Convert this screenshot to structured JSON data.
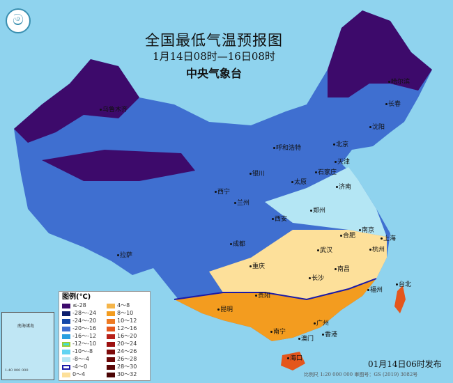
{
  "title": "全国最低气温预报图",
  "period": "1月14日08时—16日08时",
  "issuer": "中央气象台",
  "logo_icon": "cma-logo-icon",
  "legend": {
    "title": "图例(℃)",
    "items": [
      {
        "label": "≤-28",
        "color": "#3d0a6b"
      },
      {
        "label": "4～8",
        "color": "#f5b54a"
      },
      {
        "label": "-28～-24",
        "color": "#0d1f6e"
      },
      {
        "label": "8～10",
        "color": "#f39c1f"
      },
      {
        "label": "-24～-20",
        "color": "#1548a8"
      },
      {
        "label": "10～12",
        "color": "#ee7a22"
      },
      {
        "label": "-20～-16",
        "color": "#3f6fd0"
      },
      {
        "label": "12～16",
        "color": "#e4561c"
      },
      {
        "label": "-16～-12",
        "color": "#2a9fe0"
      },
      {
        "label": "16～20",
        "color": "#b8211a"
      },
      {
        "label": "-12～-10",
        "color": "#3fe0d8"
      },
      {
        "label": "20～24",
        "color": "#9c1010"
      },
      {
        "label": "-10～-8",
        "color": "#62d4f2"
      },
      {
        "label": "24～26",
        "color": "#7e0a0a"
      },
      {
        "label": "-8～-4",
        "color": "#b4e6f4"
      },
      {
        "label": "26～28",
        "color": "#6c0808"
      },
      {
        "label": "-4～0",
        "color": "#ffffff"
      },
      {
        "label": "28～30",
        "color": "#5a0606"
      },
      {
        "label": "0～4",
        "color": "#fde09a"
      },
      {
        "label": "30～32",
        "color": "#4a0404"
      }
    ]
  },
  "cities": [
    "乌鲁木齐",
    "哈尔滨",
    "长春",
    "沈阳",
    "呼和浩特",
    "北京",
    "天津",
    "石家庄",
    "太原",
    "银川",
    "济南",
    "西宁",
    "兰州",
    "郑州",
    "西安",
    "合肥",
    "南京",
    "上海",
    "杭州",
    "成都",
    "武汉",
    "拉萨",
    "重庆",
    "南昌",
    "长沙",
    "福州",
    "台北",
    "贵阳",
    "昆明",
    "南宁",
    "广州",
    "香港",
    "澳门",
    "海口"
  ],
  "inset": {
    "label": "南海诸岛",
    "scale": "1:40 000 000"
  },
  "publish_time": "01月14日06时发布",
  "scale_note": "比例尺 1:20 000 000    审图号：GS (2019) 3082号"
}
